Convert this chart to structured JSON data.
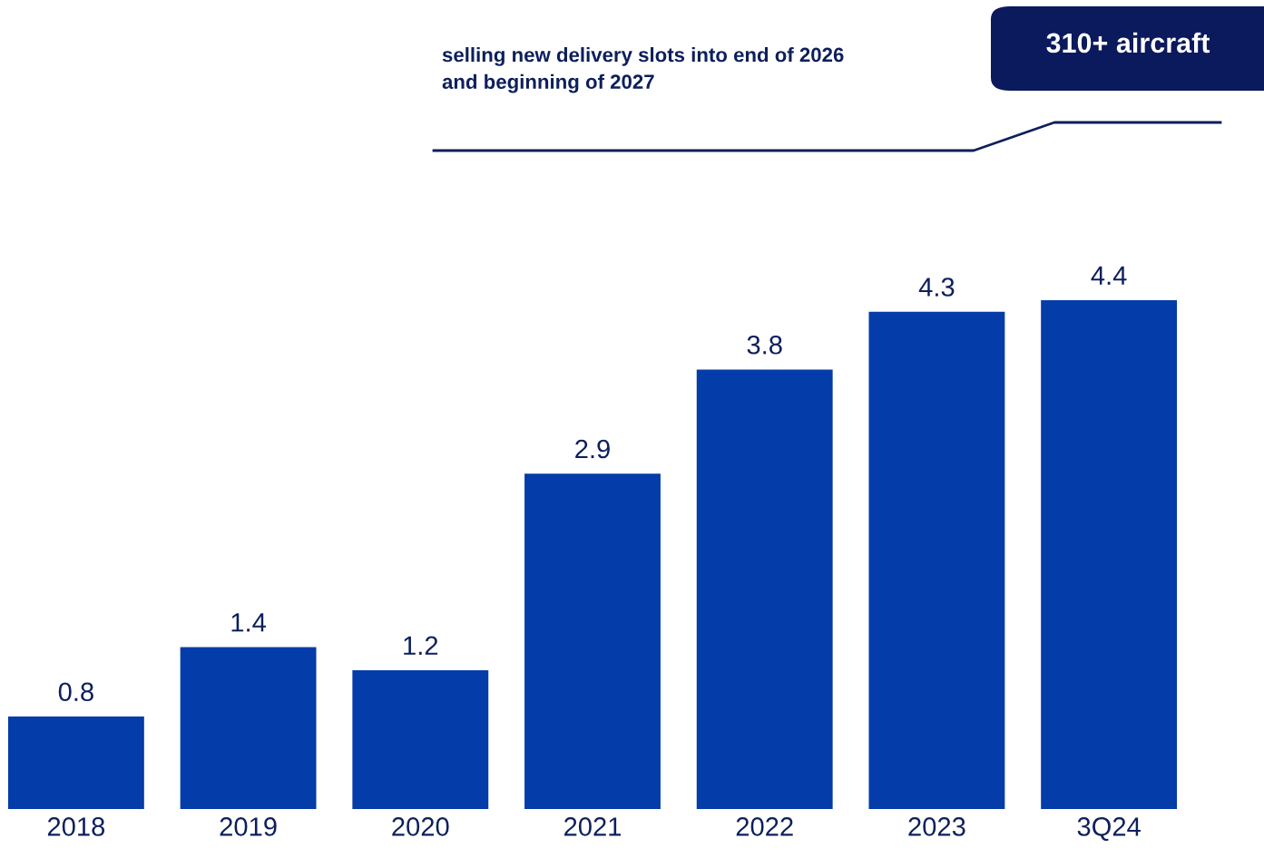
{
  "chart_data": {
    "type": "bar",
    "categories": [
      "2018",
      "2019",
      "2020",
      "2021",
      "2022",
      "2023",
      "3Q24"
    ],
    "values": [
      0.8,
      1.4,
      1.2,
      2.9,
      3.8,
      4.3,
      4.4
    ],
    "color": "#043ca9",
    "data_labels": true,
    "grid": false,
    "legend": false,
    "annotations": [
      "selling new delivery slots into end of 2026\nand beginning of 2027",
      "310+ aircraft"
    ]
  }
}
